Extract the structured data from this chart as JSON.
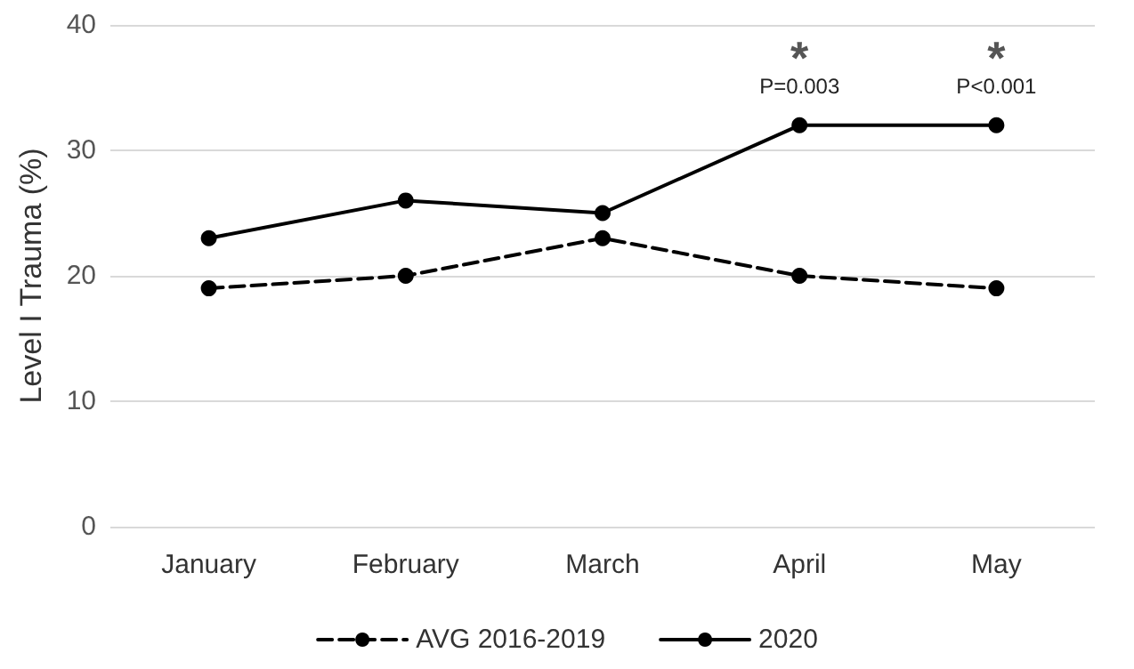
{
  "chart_data": {
    "type": "line",
    "ylabel": "Level I Trauma (%)",
    "categories": [
      "January",
      "February",
      "March",
      "April",
      "May"
    ],
    "series": [
      {
        "name": "AVG 2016-2019",
        "color": "#000000",
        "line_style": "dashed",
        "values": [
          19,
          20,
          23,
          20,
          19
        ]
      },
      {
        "name": "2020",
        "color": "#000000",
        "line_style": "solid",
        "values": [
          23,
          26,
          25,
          32,
          32
        ]
      }
    ],
    "ylim": [
      0,
      40
    ],
    "yticks": [
      0,
      10,
      20,
      30,
      40
    ],
    "grid": "y",
    "legend": "bottom",
    "marker": "circle",
    "annotations": [
      {
        "text": "*",
        "x": "April",
        "y": 32
      },
      {
        "text": "P=0.003",
        "x": "April",
        "y": 32
      },
      {
        "text": "*",
        "x": "May",
        "y": 32
      },
      {
        "text": "P<0.001",
        "x": "May",
        "y": 32
      }
    ]
  }
}
